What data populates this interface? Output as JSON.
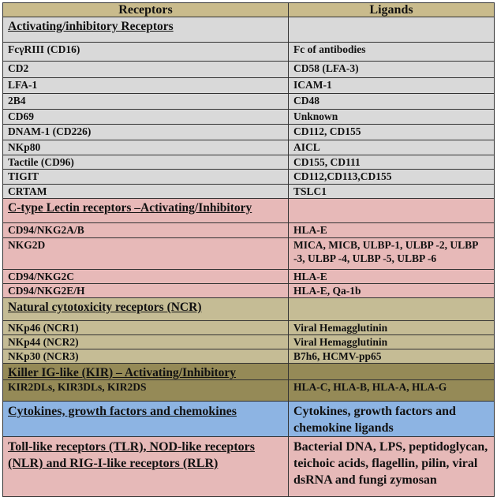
{
  "header": {
    "receptors": "Receptors",
    "ligands": "Ligands"
  },
  "colors": {
    "header": "#c9bb8c",
    "gray": "#d9d9d9",
    "pink": "#e7b9b8",
    "tan": "#c5bc95",
    "olive": "#958a57",
    "blue": "#8db4e3"
  },
  "sections": [
    {
      "title": "Activating/inhibitory Receptors",
      "title_ligand": "",
      "color": "gray",
      "rows": [
        {
          "receptor": "FcγRIII (CD16)",
          "ligand": "Fc of antibodies"
        },
        {
          "receptor": "CD2",
          "ligand": "CD58 (LFA-3)"
        },
        {
          "receptor": "LFA-1",
          "ligand": "ICAM-1"
        },
        {
          "receptor": "2B4",
          "ligand": "CD48"
        },
        {
          "receptor": "CD69",
          "ligand": "Unknown"
        },
        {
          "receptor": "DNAM-1 (CD226)",
          "ligand": "CD112, CD155"
        },
        {
          "receptor": "NKp80",
          "ligand": "AICL"
        },
        {
          "receptor": "Tactile (CD96)",
          "ligand": "CD155, CD111"
        },
        {
          "receptor": "TIGIT",
          "ligand": "CD112,CD113,CD155"
        },
        {
          "receptor": "CRTAM",
          "ligand": "TSLC1"
        }
      ]
    },
    {
      "title": "C-type Lectin receptors –Activating/Inhibitory",
      "title_ligand": "",
      "color": "pink",
      "rows": [
        {
          "receptor": "CD94/NKG2A/B",
          "ligand": "HLA-E"
        },
        {
          "receptor": "NKG2D",
          "ligand": "MICA, MICB, ULBP-1, ULBP -2, ULBP -3, ULBP -4, ULBP -5, ULBP -6"
        },
        {
          "receptor": "CD94/NKG2C",
          "ligand": "HLA-E"
        },
        {
          "receptor": "CD94/NKG2E/H",
          "ligand": "HLA-E, Qa-1b"
        }
      ]
    },
    {
      "title": "Natural cytotoxicity receptors (NCR)",
      "title_ligand": "",
      "color": "tan",
      "rows": [
        {
          "receptor": "NKp46 (NCR1)",
          "ligand": "Viral Hemagglutinin"
        },
        {
          "receptor": "NKp44 (NCR2)",
          "ligand": "Viral Hemagglutinin"
        },
        {
          "receptor": "NKp30 (NCR3)",
          "ligand": "B7h6, HCMV-pp65"
        }
      ]
    },
    {
      "title": "Killer IG-like (KIR) – Activating/Inhibitory",
      "title_ligand": "",
      "color": "olive",
      "rows": [
        {
          "receptor": "KIR2DLs, KIR3DLs, KIR2DS",
          "ligand": "HLA-C, HLA-B, HLA-A, HLA-G"
        }
      ]
    },
    {
      "title": "Cytokines, growth factors and chemokines",
      "title_ligand": "Cytokines, growth factors and chemokine ligands",
      "color": "blue",
      "rows": []
    },
    {
      "title": "Toll-like receptors (TLR), NOD-like receptors (NLR) and RIG-I-like receptors (RLR)",
      "title_ligand": "Bacterial DNA, LPS, peptidoglycan, teichoic acids, flagellin, pilin, viral dsRNA and fungi zymosan",
      "color": "pink2",
      "rows": []
    }
  ]
}
